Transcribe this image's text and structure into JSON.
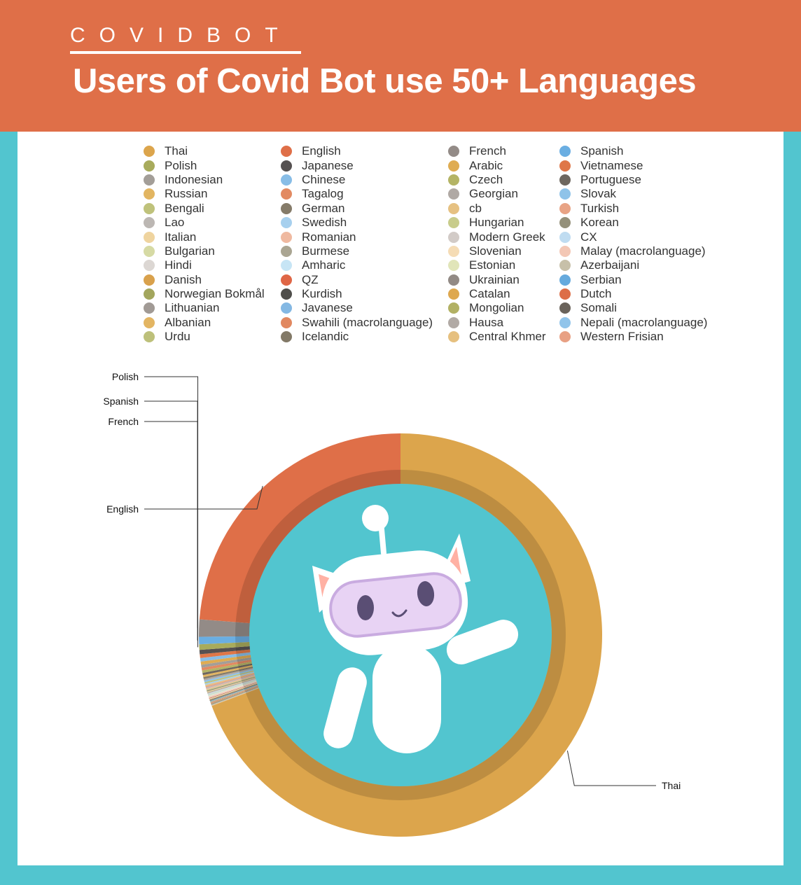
{
  "header": {
    "brand": "COVIDBOT",
    "title": "Users of Covid Bot use 50+ Languages"
  },
  "colors": {
    "header_bg": "#df6f48",
    "page_bg": "#52c5cf",
    "panel_bg": "#ffffff"
  },
  "chart_data": {
    "type": "pie",
    "style": "donut",
    "legend_position": "top",
    "callouts": [
      "Polish",
      "Spanish",
      "French",
      "English",
      "Thai"
    ],
    "series": [
      {
        "name": "Thai",
        "value": 70.0,
        "color": "#dca54c"
      },
      {
        "name": "English",
        "value": 24.0,
        "color": "#df6f48"
      },
      {
        "name": "French",
        "value": 1.4,
        "color": "#938b87"
      },
      {
        "name": "Spanish",
        "value": 0.6,
        "color": "#6aaee2"
      },
      {
        "name": "Polish",
        "value": 0.45,
        "color": "#a8ab5c"
      },
      {
        "name": "Japanese",
        "value": 0.35,
        "color": "#555151"
      },
      {
        "name": "Vietnamese",
        "value": 0.3,
        "color": "#df7748"
      },
      {
        "name": "Chinese",
        "value": 0.28,
        "color": "#88bde6"
      },
      {
        "name": "Arabic",
        "value": 0.26,
        "color": "#dfac52"
      },
      {
        "name": "Indonesian",
        "value": 0.24,
        "color": "#a39e98"
      },
      {
        "name": "Tagalog",
        "value": 0.22,
        "color": "#e28a62"
      },
      {
        "name": "Czech",
        "value": 0.2,
        "color": "#b4b465"
      },
      {
        "name": "Portuguese",
        "value": 0.18,
        "color": "#6e675f"
      },
      {
        "name": "Russian",
        "value": 0.16,
        "color": "#e2b561"
      },
      {
        "name": "German",
        "value": 0.15,
        "color": "#857b69"
      },
      {
        "name": "Georgian",
        "value": 0.14,
        "color": "#b0a9a4"
      },
      {
        "name": "Slovak",
        "value": 0.13,
        "color": "#8fc3e9"
      },
      {
        "name": "Bengali",
        "value": 0.12,
        "color": "#bfc27b"
      },
      {
        "name": "Swedish",
        "value": 0.11,
        "color": "#a7d0ee"
      },
      {
        "name": "cb",
        "value": 0.1,
        "color": "#e6c182"
      },
      {
        "name": "Turkish",
        "value": 0.1,
        "color": "#e8a385"
      },
      {
        "name": "Lao",
        "value": 0.09,
        "color": "#bcb7b3"
      },
      {
        "name": "Romanian",
        "value": 0.09,
        "color": "#efb9a0"
      },
      {
        "name": "Hungarian",
        "value": 0.08,
        "color": "#c8cc8b"
      },
      {
        "name": "Korean",
        "value": 0.08,
        "color": "#94907a"
      },
      {
        "name": "Italian",
        "value": 0.07,
        "color": "#efd49f"
      },
      {
        "name": "Burmese",
        "value": 0.07,
        "color": "#aaa592"
      },
      {
        "name": "Modern Greek",
        "value": 0.07,
        "color": "#d2cbc7"
      },
      {
        "name": "CX",
        "value": 0.06,
        "color": "#bfdcf1"
      },
      {
        "name": "Bulgarian",
        "value": 0.06,
        "color": "#d6daa4"
      },
      {
        "name": "Amharic",
        "value": 0.06,
        "color": "#c7e5f5"
      },
      {
        "name": "Slovenian",
        "value": 0.05,
        "color": "#f5dcb5"
      },
      {
        "name": "Malay (macrolanguage)",
        "value": 0.05,
        "color": "#f3c7b5"
      },
      {
        "name": "Hindi",
        "value": 0.05,
        "color": "#dcd7d3"
      },
      {
        "name": "QZ",
        "value": 0.05,
        "color": "#df6646"
      },
      {
        "name": "Estonian",
        "value": 0.04,
        "color": "#e1e5b9"
      },
      {
        "name": "Azerbaijani",
        "value": 0.04,
        "color": "#c7c0a9"
      },
      {
        "name": "Danish",
        "value": 0.04,
        "color": "#d9a14c"
      },
      {
        "name": "Kurdish",
        "value": 0.04,
        "color": "#4f4e4b"
      },
      {
        "name": "Ukrainian",
        "value": 0.04,
        "color": "#928a85"
      },
      {
        "name": "Serbian",
        "value": 0.04,
        "color": "#66aadd"
      },
      {
        "name": "Norwegian Bokmål",
        "value": 0.03,
        "color": "#a3a65d"
      },
      {
        "name": "Javanese",
        "value": 0.03,
        "color": "#84b8e3"
      },
      {
        "name": "Catalan",
        "value": 0.03,
        "color": "#dea84f"
      },
      {
        "name": "Dutch",
        "value": 0.03,
        "color": "#dd6e47"
      },
      {
        "name": "Lithuanian",
        "value": 0.03,
        "color": "#a19a95"
      },
      {
        "name": "Swahili (macrolanguage)",
        "value": 0.03,
        "color": "#e18860"
      },
      {
        "name": "Mongolian",
        "value": 0.03,
        "color": "#b2b164"
      },
      {
        "name": "Somali",
        "value": 0.03,
        "color": "#6a635b"
      },
      {
        "name": "Albanian",
        "value": 0.02,
        "color": "#e3b562"
      },
      {
        "name": "Icelandic",
        "value": 0.02,
        "color": "#827967"
      },
      {
        "name": "Hausa",
        "value": 0.02,
        "color": "#b1aaa5"
      },
      {
        "name": "Nepali (macrolanguage)",
        "value": 0.02,
        "color": "#91c4ea"
      },
      {
        "name": "Urdu",
        "value": 0.02,
        "color": "#bdc07a"
      },
      {
        "name": "Central Khmer",
        "value": 0.02,
        "color": "#e6c07f"
      },
      {
        "name": "Western Frisian",
        "value": 0.02,
        "color": "#e8a083"
      }
    ],
    "legend_columns": [
      [
        "Thai",
        "Polish",
        "Indonesian",
        "Russian",
        "Bengali",
        "Lao",
        "Italian",
        "Bulgarian",
        "Hindi",
        "Danish",
        "Norwegian Bokmål",
        "Lithuanian",
        "Albanian",
        "Urdu"
      ],
      [
        "English",
        "Japanese",
        "Chinese",
        "Tagalog",
        "German",
        "Swedish",
        "Romanian",
        "Burmese",
        "Amharic",
        "QZ",
        "Kurdish",
        "Javanese",
        "Swahili (macrolanguage)",
        "Icelandic"
      ],
      [
        "French",
        "Arabic",
        "Czech",
        "Georgian",
        "cb",
        "Hungarian",
        "Modern Greek",
        "Slovenian",
        "Estonian",
        "Ukrainian",
        "Catalan",
        "Mongolian",
        "Hausa",
        "Central Khmer"
      ],
      [
        "Spanish",
        "Vietnamese",
        "Portuguese",
        "Slovak",
        "Turkish",
        "Korean",
        "CX",
        "Malay (macrolanguage)",
        "Azerbaijani",
        "Serbian",
        "Dutch",
        "Somali",
        "Nepali (macrolanguage)",
        "Western Frisian"
      ]
    ]
  }
}
